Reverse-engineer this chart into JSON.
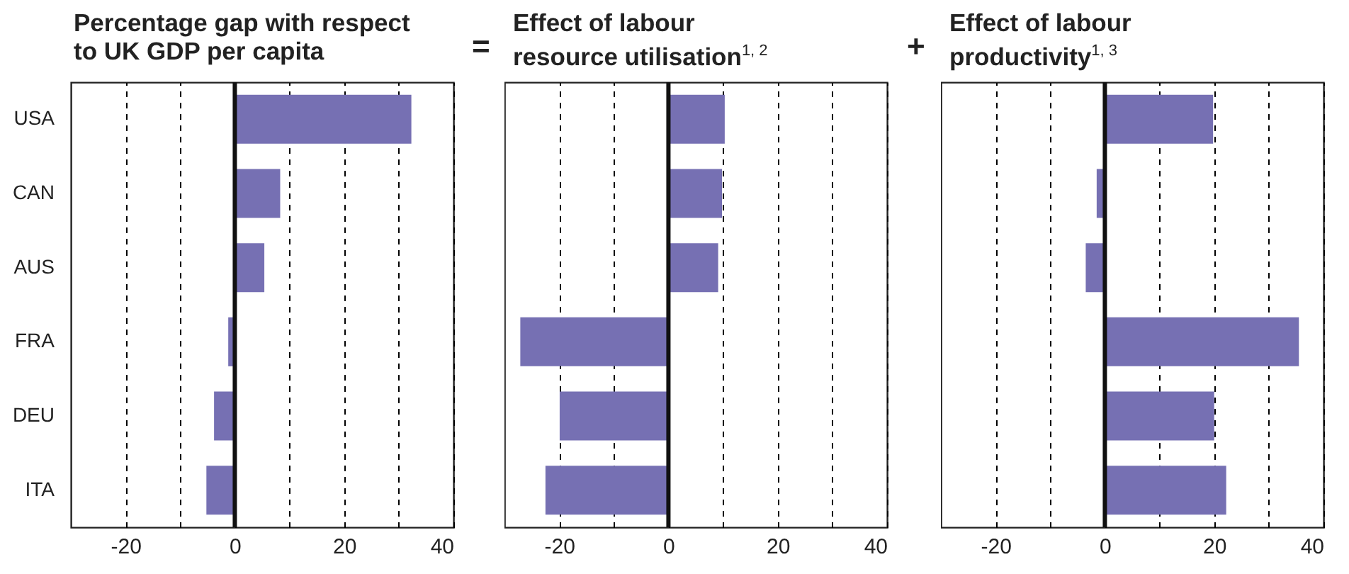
{
  "chart_data": [
    {
      "type": "bar",
      "orientation": "horizontal",
      "title": "Percentage gap with respect to UK GDP per capita",
      "categories": [
        "USA",
        "CAN",
        "AUS",
        "FRA",
        "DEU",
        "ITA"
      ],
      "values": [
        32.3,
        8.3,
        5.4,
        -1.2,
        -3.8,
        -5.2
      ],
      "color": "#7670b3",
      "xlim": [
        -30,
        40
      ],
      "xticks": [
        -20,
        {
          "value": -10,
          "label": null
        },
        0,
        {
          "value": 10,
          "label": null
        },
        20,
        {
          "value": 30,
          "label": null
        },
        40
      ],
      "grid": "x",
      "ref_lines": [
        {
          "axis": "x",
          "value": 0,
          "label": null
        }
      ],
      "annotations": [
        "="
      ]
    },
    {
      "type": "bar",
      "orientation": "horizontal",
      "title": "Effect of labour resource utilisation$^{1, 2}$",
      "categories": [
        null,
        null,
        null,
        null,
        null,
        null
      ],
      "values": [
        10.3,
        9.8,
        9.1,
        -27.1,
        -19.9,
        -22.5
      ],
      "color": "#7670b3",
      "xlim": [
        -30,
        40
      ],
      "xticks": [
        -20,
        {
          "value": -10,
          "label": null
        },
        0,
        {
          "value": 10,
          "label": null
        },
        20,
        {
          "value": 30,
          "label": null
        },
        40
      ],
      "grid": "x",
      "tick_labels": "x",
      "ref_lines": [
        {
          "axis": "x",
          "value": 0,
          "label": null
        }
      ],
      "annotations": [
        "+"
      ]
    },
    {
      "type": "bar",
      "orientation": "horizontal",
      "title": "Effect of labour productivity$^{1, 3}$",
      "categories": [
        null,
        null,
        null,
        null,
        null,
        null
      ],
      "values": [
        19.8,
        -1.5,
        -3.5,
        35.5,
        20.0,
        22.2
      ],
      "color": "#7670b3",
      "xlim": [
        -30,
        40
      ],
      "xticks": [
        -20,
        {
          "value": -10,
          "label": null
        },
        0,
        {
          "value": 10,
          "label": null
        },
        20,
        {
          "value": 30,
          "label": null
        },
        40
      ],
      "grid": "x",
      "tick_labels": "x",
      "ref_lines": [
        {
          "axis": "x",
          "value": 0,
          "label": null
        }
      ]
    }
  ]
}
